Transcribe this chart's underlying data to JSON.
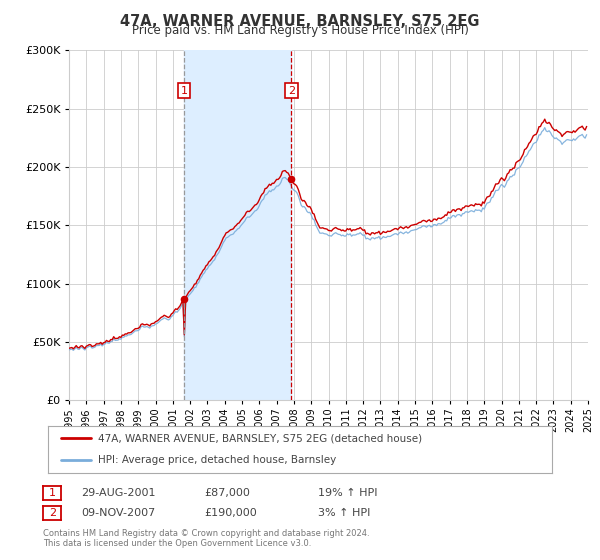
{
  "title": "47A, WARNER AVENUE, BARNSLEY, S75 2EG",
  "subtitle": "Price paid vs. HM Land Registry's House Price Index (HPI)",
  "legend_line1": "47A, WARNER AVENUE, BARNSLEY, S75 2EG (detached house)",
  "legend_line2": "HPI: Average price, detached house, Barnsley",
  "footer_line1": "Contains HM Land Registry data © Crown copyright and database right 2024.",
  "footer_line2": "This data is licensed under the Open Government Licence v3.0.",
  "annotation1_label": "1",
  "annotation1_date": "29-AUG-2001",
  "annotation1_price": "£87,000",
  "annotation1_hpi": "19% ↑ HPI",
  "annotation2_label": "2",
  "annotation2_date": "09-NOV-2007",
  "annotation2_price": "£190,000",
  "annotation2_hpi": "3% ↑ HPI",
  "sale1_x": 2001.66,
  "sale1_y": 87000,
  "sale2_x": 2007.86,
  "sale2_y": 190000,
  "vline1_x": 2001.66,
  "vline2_x": 2007.86,
  "shaded_region_start": 2001.66,
  "shaded_region_end": 2007.86,
  "ylim": [
    0,
    300000
  ],
  "xlim": [
    1995,
    2025
  ],
  "red_color": "#cc0000",
  "blue_color": "#7aaddb",
  "shade_color": "#ddeeff",
  "vline1_color": "#999999",
  "vline2_color": "#cc0000",
  "annotation_box_color": "#cc0000",
  "grid_color": "#cccccc",
  "background_color": "#ffffff",
  "title_color": "#333333",
  "text_color": "#444444"
}
